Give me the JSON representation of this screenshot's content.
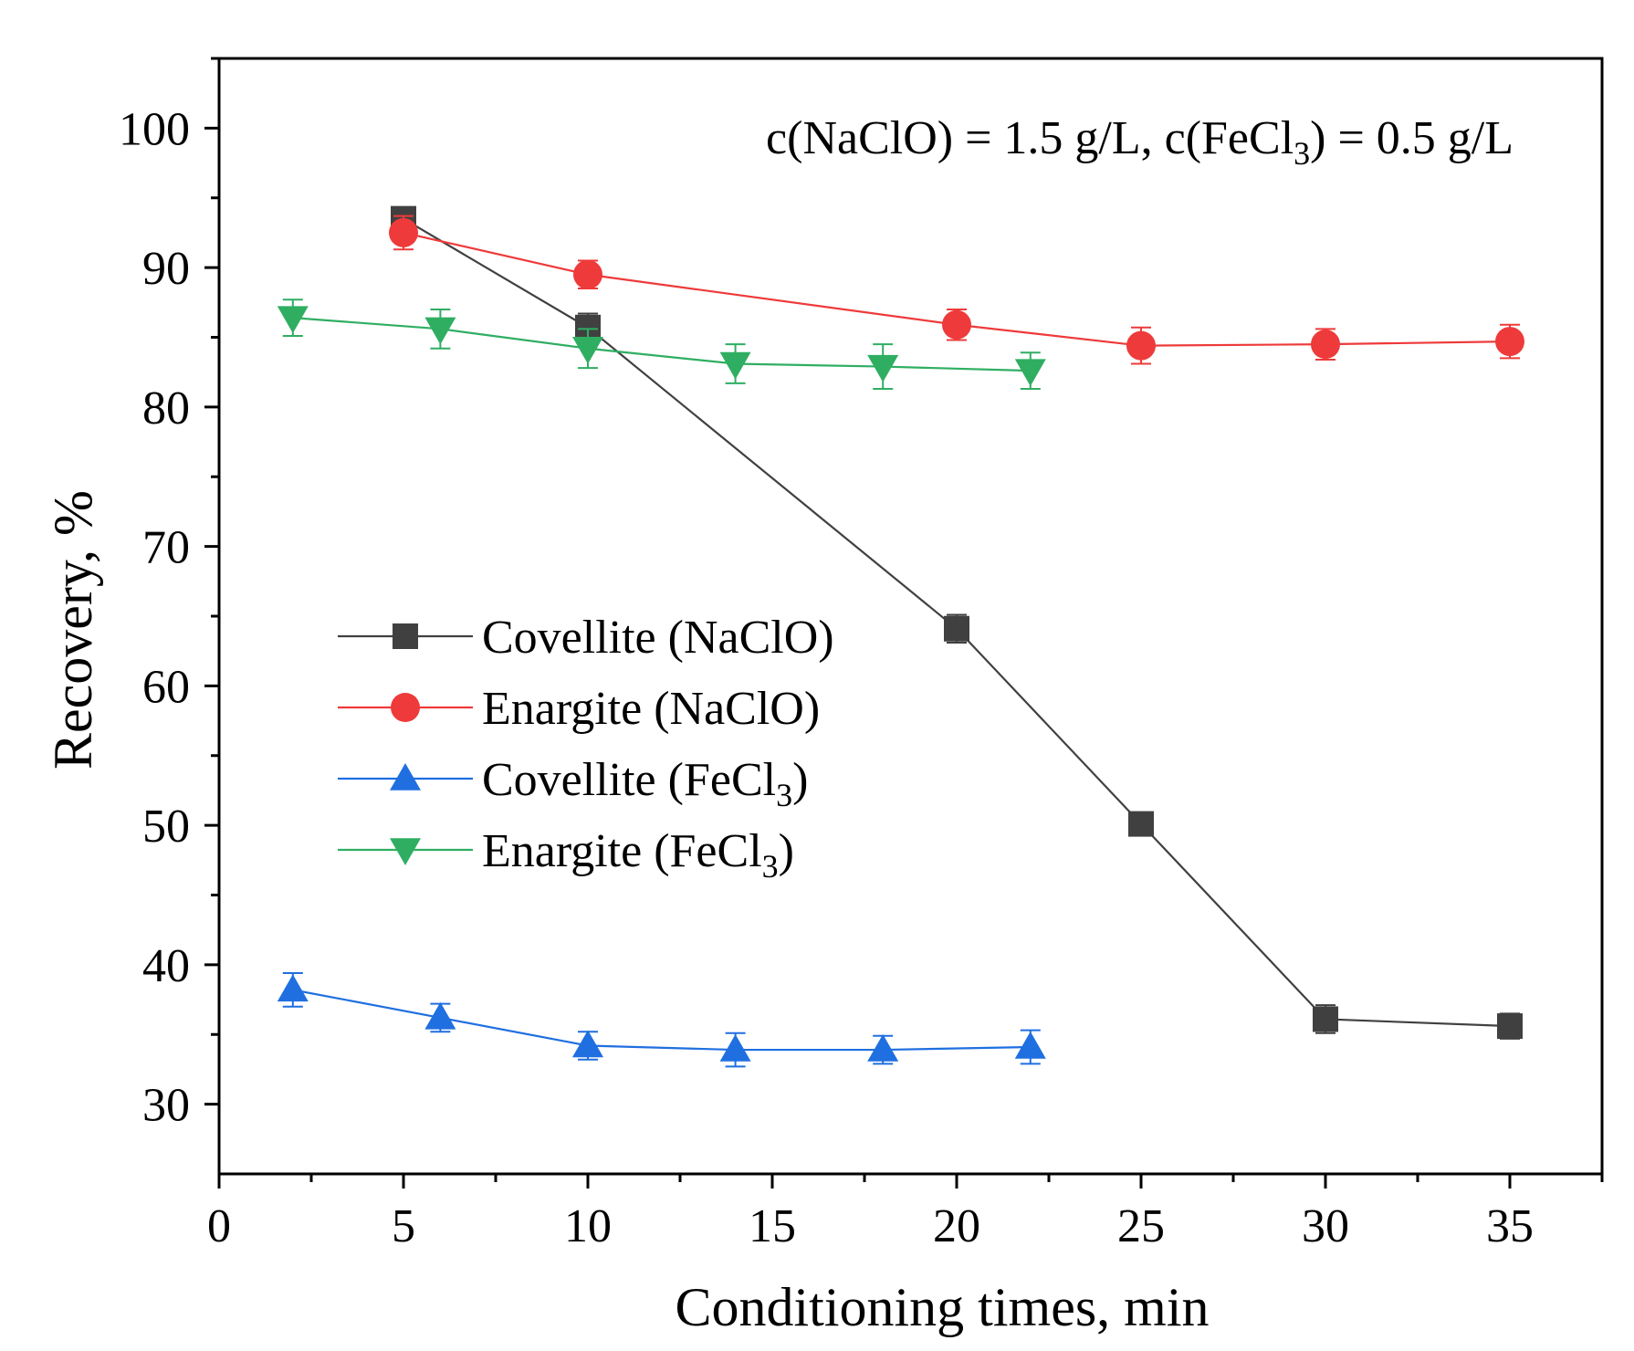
{
  "chart_data": {
    "type": "line",
    "title": "",
    "annotation": {
      "prefix": "c(NaClO) = 1.5 g/L, c(FeCl",
      "sub": "3",
      "suffix": ") = 0.5 g/L"
    },
    "xlabel": "Conditioning times, min",
    "ylabel": "Recovery, %",
    "xlim": [
      0,
      37.5
    ],
    "ylim": [
      25,
      105
    ],
    "xticks": [
      0,
      5,
      10,
      15,
      20,
      25,
      30,
      35
    ],
    "xticks_minor": [
      2.5,
      7.5,
      12.5,
      17.5,
      22.5,
      27.5,
      32.5,
      37.5
    ],
    "yticks": [
      30,
      40,
      50,
      60,
      70,
      80,
      90,
      100
    ],
    "yticks_minor": [
      35,
      45,
      55,
      65,
      75,
      85,
      95,
      105
    ],
    "legend_position": "center-left",
    "series": [
      {
        "name": "Covellite (NaClO)",
        "label_main": "Covellite (NaClO)",
        "label_sub": "",
        "label_tail": "",
        "color": "#404040",
        "marker": "square",
        "x": [
          5,
          10,
          20,
          25,
          30,
          35
        ],
        "y": [
          93.5,
          85.7,
          64.1,
          50.1,
          36.1,
          35.6
        ],
        "err": [
          0.8,
          1.0,
          1.0,
          0.6,
          1.0,
          0.9
        ]
      },
      {
        "name": "Enargite (NaClO)",
        "label_main": "Enargite (NaClO)",
        "label_sub": "",
        "label_tail": "",
        "color": "#ee3a3a",
        "marker": "circle",
        "x": [
          5,
          10,
          20,
          25,
          30,
          35
        ],
        "y": [
          92.5,
          89.5,
          85.9,
          84.4,
          84.5,
          84.7
        ],
        "err": [
          1.2,
          1.0,
          1.1,
          1.3,
          1.1,
          1.2
        ]
      },
      {
        "name": "Covellite (FeCl3)",
        "label_main": "Covellite (FeCl",
        "label_sub": "3",
        "label_tail": ")",
        "color": "#1f6fe0",
        "marker": "triangle-up",
        "x": [
          2,
          6,
          10,
          14,
          18,
          22
        ],
        "y": [
          38.2,
          36.2,
          34.2,
          33.9,
          33.9,
          34.1
        ],
        "err": [
          1.2,
          1.0,
          1.0,
          1.2,
          1.0,
          1.2
        ]
      },
      {
        "name": "Enargite (FeCl3)",
        "label_main": "Enargite (FeCl",
        "label_sub": "3",
        "label_tail": ")",
        "color": "#2fae62",
        "marker": "triangle-down",
        "x": [
          2,
          6,
          10,
          14,
          18,
          22
        ],
        "y": [
          86.4,
          85.6,
          84.2,
          83.1,
          82.9,
          82.6
        ],
        "err": [
          1.3,
          1.4,
          1.4,
          1.4,
          1.6,
          1.3
        ]
      }
    ]
  }
}
